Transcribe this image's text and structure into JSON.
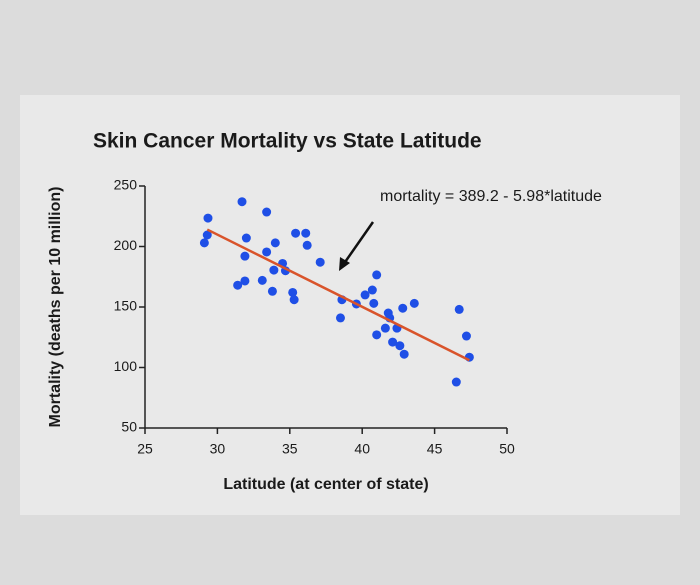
{
  "chart_data": {
    "type": "scatter",
    "title": "Skin Cancer  Mortality vs State  Latitude",
    "x_label": "Latitude (at center of state)",
    "y_label": "Mortality (deaths per 10 million)",
    "annotation": "mortality = 389.2 - 5.98*latitude",
    "xlim": [
      25,
      50
    ],
    "xticks": [
      25,
      30,
      35,
      40,
      45,
      50
    ],
    "ylim": [
      50,
      250
    ],
    "yticks": [
      50,
      100,
      150,
      200,
      250
    ],
    "series": [
      {
        "type": "scatter",
        "color": "#1f4fe6",
        "x": [
          29.35,
          29.3,
          29.1,
          31.7,
          33.4,
          32.0,
          31.9,
          34.0,
          33.4,
          35.4,
          36.1,
          36.2,
          37.1,
          31.4,
          31.9,
          33.1,
          33.9,
          34.7,
          34.5,
          33.8,
          35.2,
          35.3,
          38.6,
          38.5,
          39.6,
          40.2,
          40.7,
          41.0,
          40.8,
          41.8,
          41.9,
          41.6,
          41.0,
          42.4,
          42.8,
          43.6,
          42.1,
          42.6,
          42.9,
          46.7,
          47.2,
          47.4,
          46.5
        ],
        "values": [
          223.5,
          209.5,
          203,
          237,
          228.5,
          207,
          192,
          203,
          195.5,
          211,
          211,
          201,
          187,
          168,
          171.5,
          172,
          180.5,
          180,
          186,
          163,
          162,
          156,
          156,
          141,
          152.5,
          160,
          164,
          176.5,
          153,
          145,
          141,
          132.5,
          127,
          132.5,
          149,
          153,
          121,
          118,
          111,
          148,
          126,
          108.5,
          88
        ]
      },
      {
        "type": "line",
        "color": "#d9542b",
        "x": [
          29.3,
          47.4
        ],
        "values": [
          214,
          106
        ]
      }
    ]
  }
}
